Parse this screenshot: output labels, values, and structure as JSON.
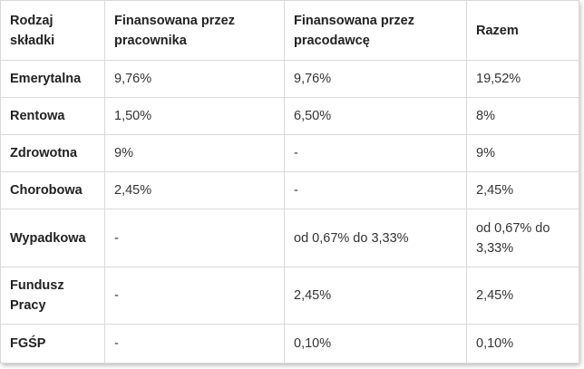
{
  "table": {
    "headers": [
      "Rodzaj składki",
      "Finansowana przez pracownika",
      "Finansowana przez pracodawcę",
      "Razem"
    ],
    "rows": [
      [
        "Emerytalna",
        "9,76%",
        "9,76%",
        "19,52%"
      ],
      [
        "Rentowa",
        "1,50%",
        "6,50%",
        "8%"
      ],
      [
        "Zdrowotna",
        "9%",
        "-",
        "9%"
      ],
      [
        "Chorobowa",
        "2,45%",
        "-",
        "2,45%"
      ],
      [
        "Wypadkowa",
        "-",
        "od 0,67% do 3,33%",
        "od 0,67% do 3,33%"
      ],
      [
        "Fundusz Pracy",
        "-",
        "2,45%",
        "2,45%"
      ],
      [
        "FGŚP",
        "-",
        "0,10%",
        "0,10%"
      ]
    ]
  }
}
